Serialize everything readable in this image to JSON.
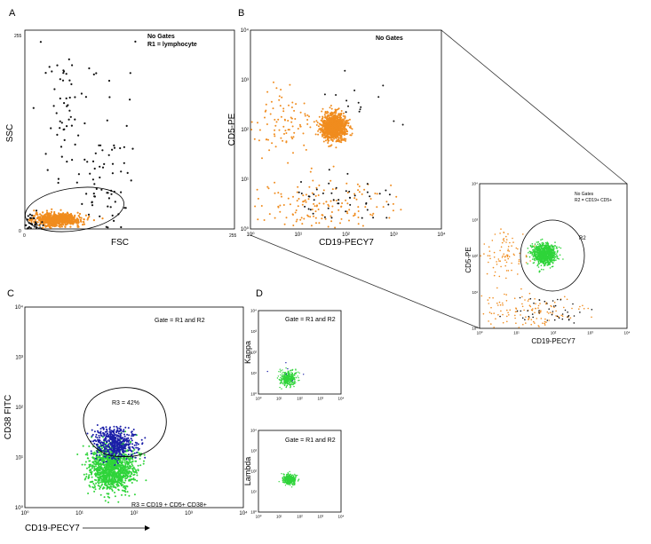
{
  "colors": {
    "lymphocyte": "#f08c1e",
    "cd5": "#2fd43a",
    "cd38": "#1b1fa8",
    "other": "#111111",
    "axis": "#000000"
  },
  "chart_data": [
    {
      "id": "A",
      "type": "scatter",
      "panel_label": "A",
      "xlabel": "FSC",
      "ylabel": "SSC",
      "xlim": [
        0,
        255
      ],
      "ylim": [
        0,
        255
      ],
      "x_ticks": [
        "0",
        "255"
      ],
      "y_ticks": [
        "0",
        "255"
      ],
      "annotations": [
        "No Gates",
        "R1 = lymphocyte"
      ],
      "gate_label": "R1",
      "series": [
        {
          "color": "#f08c1e",
          "clusters": [
            {
              "cx": 40,
              "cy": 12,
              "sx": 14,
              "sy": 4,
              "n": 700
            }
          ]
        },
        {
          "color": "#111111",
          "clusters": [
            {
              "cx": 45,
              "cy": 140,
              "sx": 8,
              "sy": 40,
              "n": 40
            },
            {
              "cx": 95,
              "cy": 60,
              "sx": 16,
              "sy": 40,
              "n": 70
            },
            {
              "cx": 60,
              "cy": 180,
              "sx": 60,
              "sy": 40,
              "n": 25
            },
            {
              "cx": 10,
              "cy": 8,
              "sx": 8,
              "sy": 6,
              "n": 30
            }
          ]
        }
      ]
    },
    {
      "id": "B",
      "type": "scatter",
      "panel_label": "B",
      "scale": "log",
      "xlabel": "CD19-PECY7",
      "ylabel": "CD5-PE",
      "xlim": [
        0,
        4
      ],
      "ylim": [
        0,
        4
      ],
      "x_ticks": [
        "10⁰",
        "10¹",
        "10²",
        "10³",
        "10⁴"
      ],
      "y_ticks": [
        "10⁰",
        "10¹",
        "10²",
        "10³",
        "10⁴"
      ],
      "annotations": [
        "No Gates"
      ],
      "series": [
        {
          "color": "#f08c1e",
          "clusters": [
            {
              "cx": 1.75,
              "cy": 2.05,
              "sx": 0.13,
              "sy": 0.13,
              "n": 1100
            },
            {
              "cx": 0.7,
              "cy": 2.1,
              "sx": 0.35,
              "sy": 0.35,
              "n": 90
            },
            {
              "cx": 1.3,
              "cy": 0.45,
              "sx": 0.75,
              "sy": 0.28,
              "n": 160
            }
          ]
        },
        {
          "color": "#111111",
          "clusters": [
            {
              "cx": 1.8,
              "cy": 0.55,
              "sx": 0.55,
              "sy": 0.25,
              "n": 45
            },
            {
              "cx": 2.3,
              "cy": 2.4,
              "sx": 0.4,
              "sy": 0.4,
              "n": 15
            }
          ]
        }
      ]
    },
    {
      "id": "B-inset",
      "type": "scatter",
      "scale": "log",
      "xlabel": "CD19-PECY7",
      "ylabel": "CD5-PE",
      "xlim": [
        0,
        4
      ],
      "ylim": [
        0,
        4
      ],
      "x_ticks": [
        "10⁰",
        "10¹",
        "10²",
        "10³",
        "10⁴"
      ],
      "y_ticks": [
        "10⁰",
        "10¹",
        "10²",
        "10³",
        "10⁴"
      ],
      "annotations": [
        "No Gates",
        "R2 = CD19+ CD5+"
      ],
      "gate_label": "R2",
      "series": [
        {
          "color": "#2fd43a",
          "clusters": [
            {
              "cx": 1.75,
              "cy": 2.05,
              "sx": 0.15,
              "sy": 0.14,
              "n": 900
            }
          ]
        },
        {
          "color": "#f08c1e",
          "clusters": [
            {
              "cx": 0.7,
              "cy": 2.1,
              "sx": 0.35,
              "sy": 0.35,
              "n": 80
            },
            {
              "cx": 1.3,
              "cy": 0.45,
              "sx": 0.75,
              "sy": 0.28,
              "n": 130
            }
          ]
        },
        {
          "color": "#111111",
          "clusters": [
            {
              "cx": 1.8,
              "cy": 0.5,
              "sx": 0.55,
              "sy": 0.22,
              "n": 45
            }
          ]
        }
      ]
    },
    {
      "id": "C",
      "type": "scatter",
      "panel_label": "C",
      "scale": "log",
      "xlabel": "CD19-PECY7",
      "ylabel": "CD38 FITC",
      "xlim": [
        0,
        4
      ],
      "ylim": [
        0,
        4
      ],
      "x_ticks": [
        "10⁰",
        "10¹",
        "10²",
        "10³",
        "10⁴"
      ],
      "y_ticks": [
        "10⁰",
        "10¹",
        "10²",
        "10³",
        "10⁴"
      ],
      "annotations": [
        "Gate = R1 and R2",
        "R3 = 42%",
        "R3 = CD19 + CD5+ CD38+"
      ],
      "series": [
        {
          "color": "#2fd43a",
          "clusters": [
            {
              "cx": 1.6,
              "cy": 0.8,
              "sx": 0.2,
              "sy": 0.22,
              "n": 1300
            }
          ]
        },
        {
          "color": "#1b1fa8",
          "clusters": [
            {
              "cx": 1.65,
              "cy": 1.28,
              "sx": 0.18,
              "sy": 0.15,
              "n": 500
            }
          ]
        }
      ]
    },
    {
      "id": "D-kappa",
      "type": "scatter",
      "panel_label": "D",
      "scale": "log",
      "xlabel": "",
      "ylabel": "Kappa",
      "xlim": [
        0,
        4
      ],
      "ylim": [
        0,
        4
      ],
      "x_ticks": [
        "10⁰",
        "10¹",
        "10²",
        "10³",
        "10⁴"
      ],
      "y_ticks": [
        "10⁰",
        "10¹",
        "10²",
        "10³",
        "10⁴"
      ],
      "annotations": [
        "Gate = R1 and R2"
      ],
      "series": [
        {
          "color": "#2fd43a",
          "clusters": [
            {
              "cx": 1.45,
              "cy": 0.75,
              "sx": 0.2,
              "sy": 0.18,
              "n": 350
            }
          ]
        },
        {
          "color": "#1b1fa8",
          "clusters": [
            {
              "cx": 1.5,
              "cy": 1.2,
              "sx": 0.25,
              "sy": 0.3,
              "n": 6
            }
          ]
        }
      ]
    },
    {
      "id": "D-lambda",
      "type": "scatter",
      "scale": "log",
      "xlabel": "",
      "ylabel": "Lambda",
      "xlim": [
        0,
        4
      ],
      "ylim": [
        0,
        4
      ],
      "x_ticks": [
        "10⁰",
        "10¹",
        "10²",
        "10³",
        "10⁴"
      ],
      "y_ticks": [
        "10⁰",
        "10¹",
        "10²",
        "10³",
        "10⁴"
      ],
      "annotations": [
        "Gate = R1 and R2"
      ],
      "series": [
        {
          "color": "#2fd43a",
          "clusters": [
            {
              "cx": 1.5,
              "cy": 1.6,
              "sx": 0.15,
              "sy": 0.12,
              "n": 400
            }
          ]
        }
      ]
    }
  ]
}
